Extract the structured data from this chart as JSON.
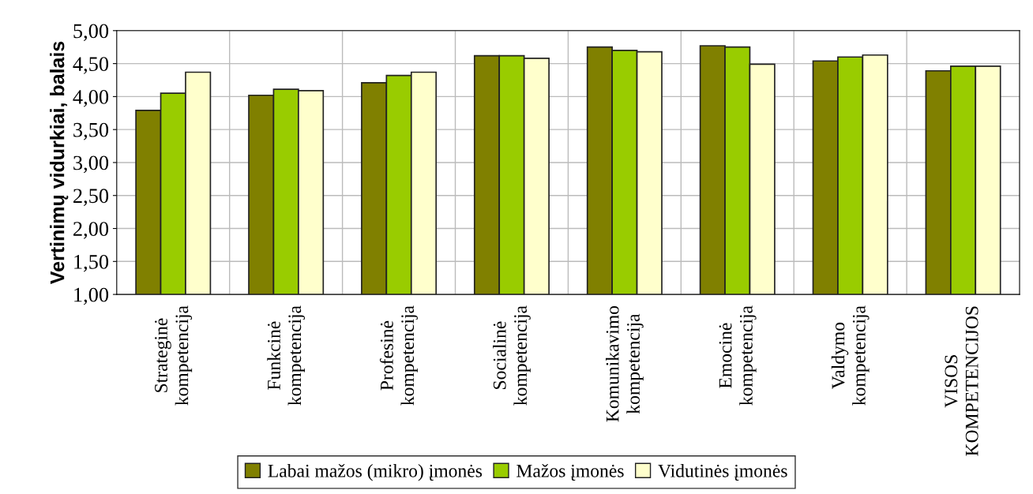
{
  "chart_data": {
    "type": "bar",
    "ylabel": "Vertinimų vidurkiai, balais",
    "categories": [
      "Strateginė\nkompetencija",
      "Funkcinė\nkompetencija",
      "Profesinė\nkompetencija",
      "Socialinė\nkompetencija",
      "Komunikavimo\nkompetencija",
      "Emocinė\nkompetencija",
      "Valdymo\nkompetencija",
      "VISOS\nKOMPETENCIJOS"
    ],
    "series": [
      {
        "name": "Labai mažos (mikro) įmonės",
        "color": "#808000",
        "values": [
          3.79,
          4.02,
          4.21,
          4.62,
          4.75,
          4.77,
          4.54,
          4.39
        ]
      },
      {
        "name": "Mažos įmonės",
        "color": "#99cc00",
        "values": [
          4.05,
          4.11,
          4.32,
          4.62,
          4.7,
          4.75,
          4.6,
          4.46
        ]
      },
      {
        "name": "Vidutinės įmonės",
        "color": "#ffffcc",
        "values": [
          4.37,
          4.09,
          4.37,
          4.58,
          4.68,
          4.49,
          4.63,
          4.46
        ]
      }
    ],
    "ylim": [
      1,
      5
    ],
    "yticks": [
      {
        "value": 1,
        "label": "1,00"
      },
      {
        "value": 1.5,
        "label": "1,50"
      },
      {
        "value": 2,
        "label": "2,00"
      },
      {
        "value": 2.5,
        "label": "2,50"
      },
      {
        "value": 3,
        "label": "3,00"
      },
      {
        "value": 3.5,
        "label": "3,50"
      },
      {
        "value": 4,
        "label": "4,00"
      },
      {
        "value": 4.5,
        "label": "4,50"
      },
      {
        "value": 5,
        "label": "5,00"
      }
    ],
    "grid": true,
    "legend": "bottom"
  }
}
